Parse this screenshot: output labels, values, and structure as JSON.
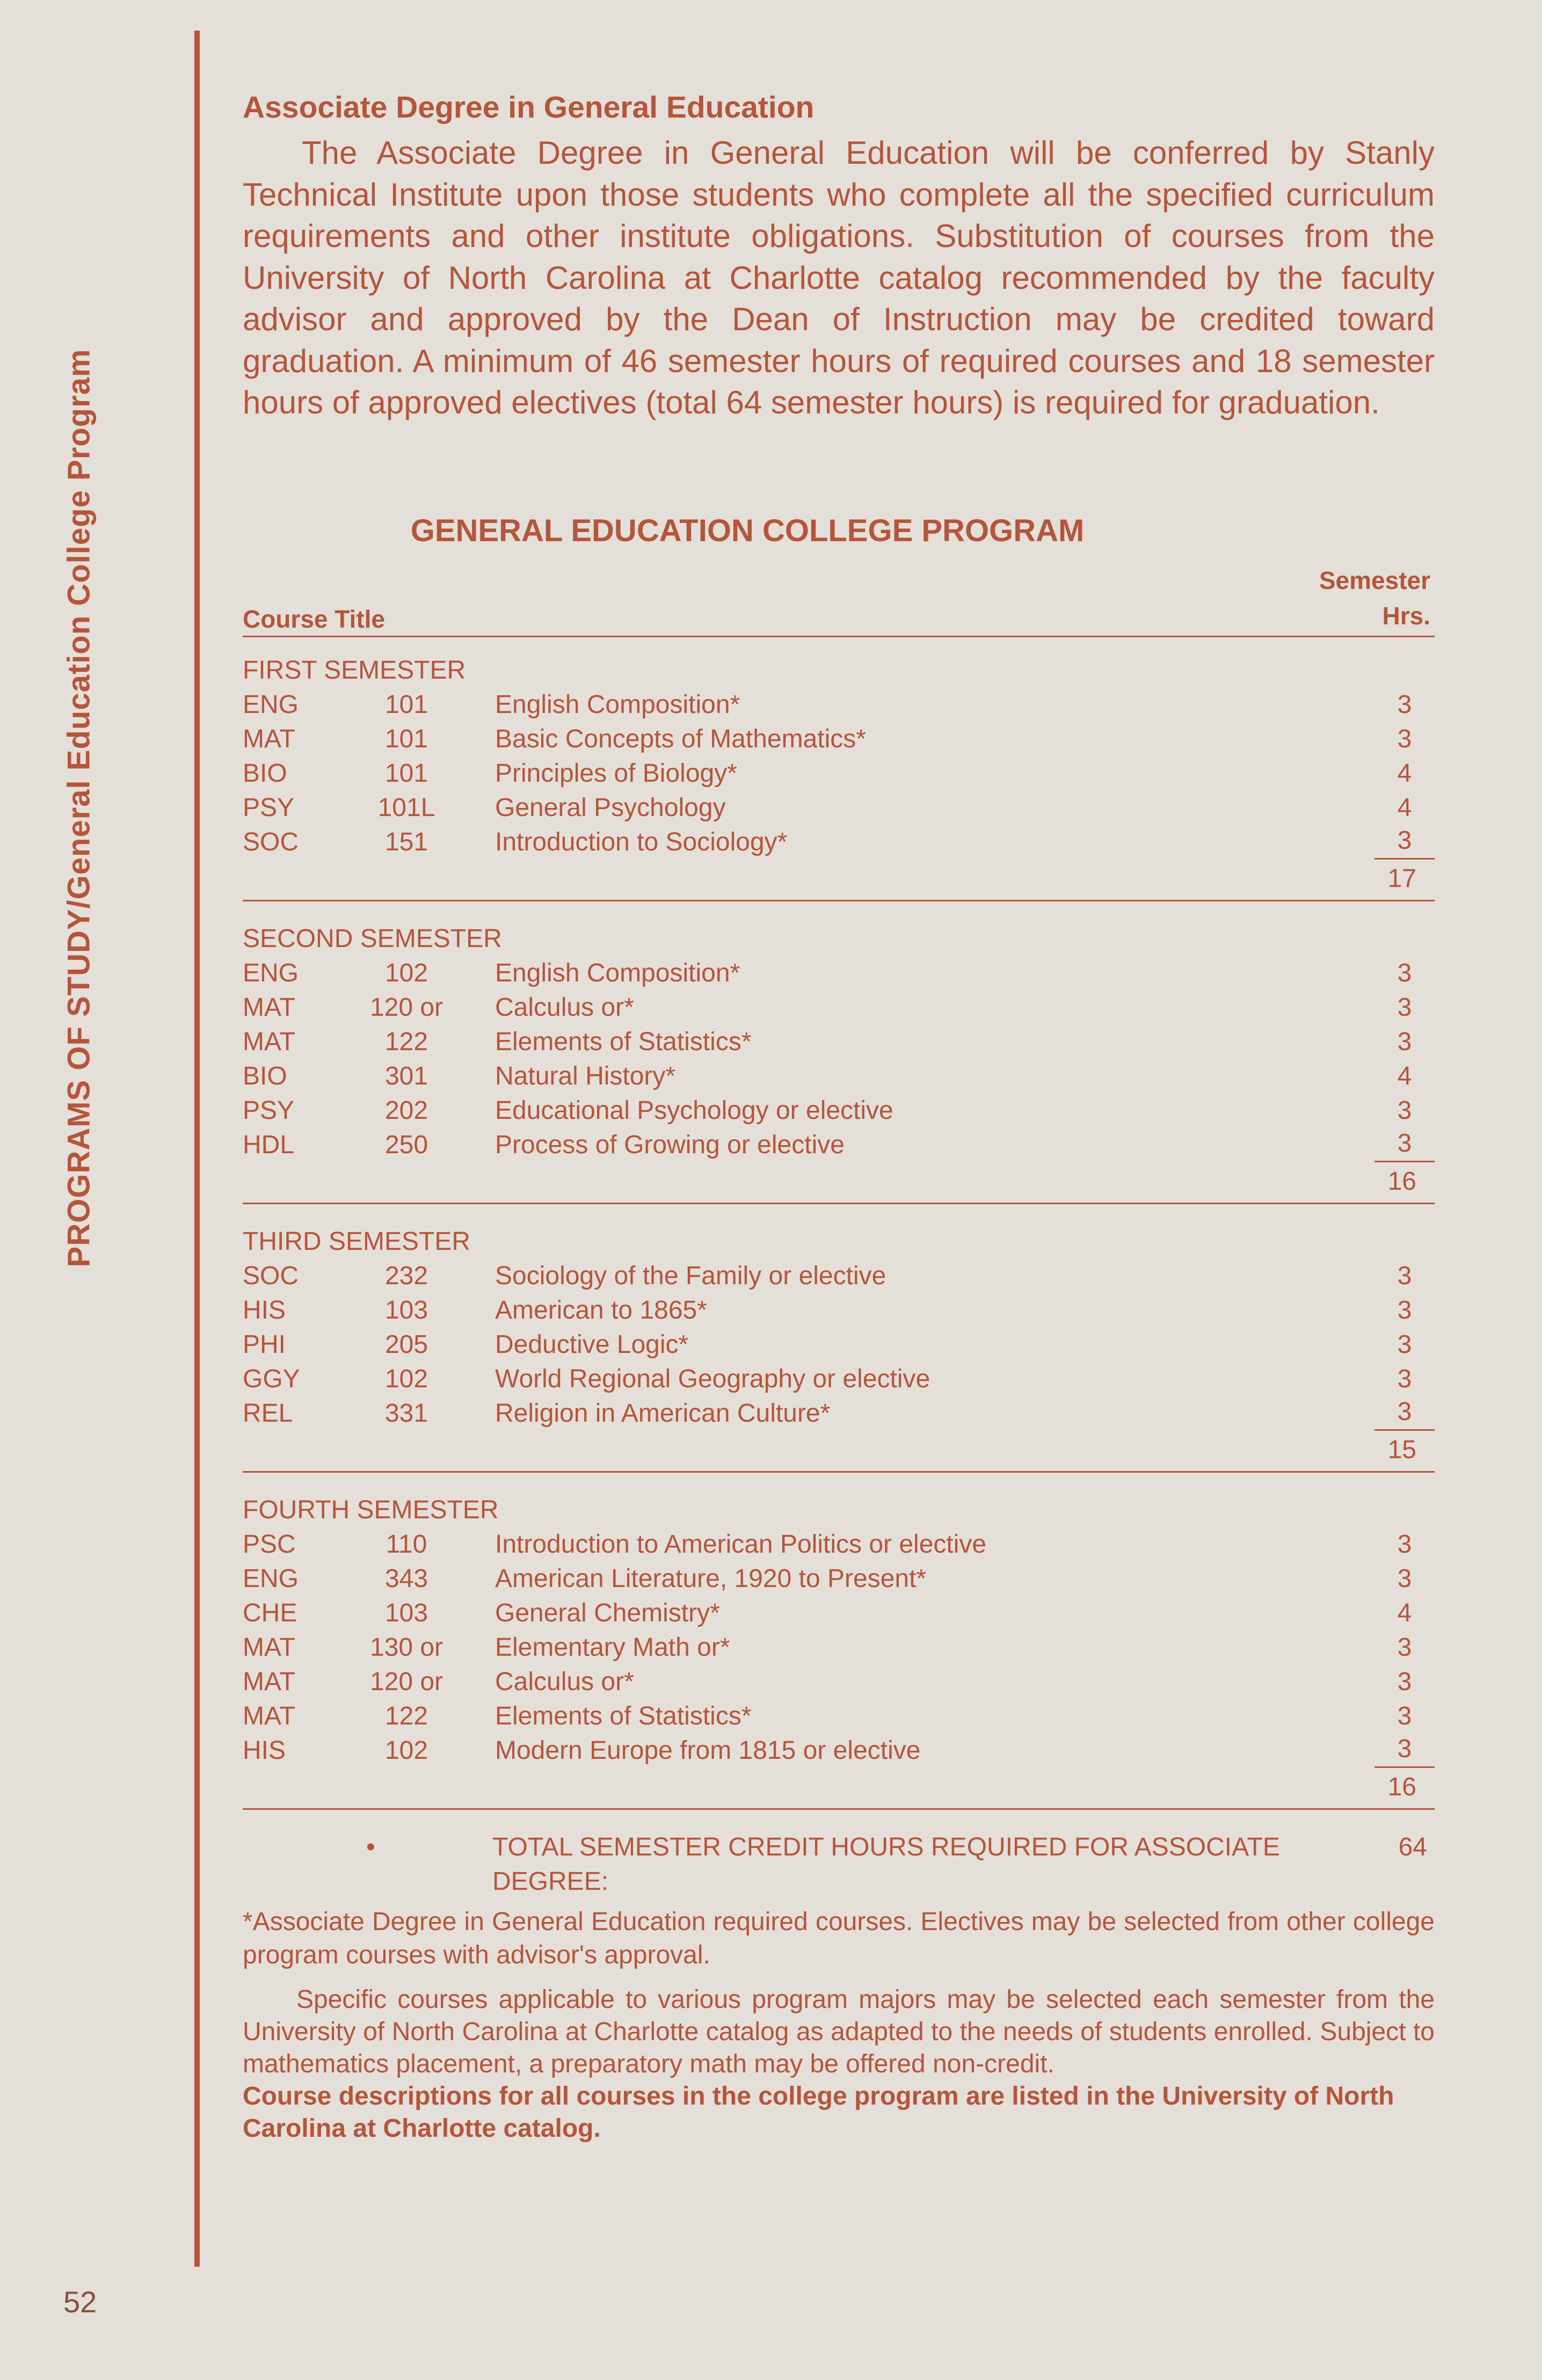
{
  "side_title": "PROGRAMS OF STUDY/General Education College Program",
  "page_number": "52",
  "section_heading": "Associate Degree in General Education",
  "intro": "The Associate Degree in General Education will be conferred by Stanly Technical Institute upon those students who complete all the specified curriculum requirements and other institute obligations. Substitution of courses from the University of North Carolina at Charlotte catalog recommended by the faculty advisor and approved by the Dean of Instruction may be credited toward graduation. A minimum of 46 semester hours of required courses and 18 semester hours of approved electives (total 64 semester hours) is required for graduation.",
  "program_title": "GENERAL EDUCATION COLLEGE PROGRAM",
  "table_header": {
    "course_title": "Course Title",
    "hours_line1": "Semester",
    "hours_line2": "Hrs."
  },
  "semesters": [
    {
      "label": "FIRST SEMESTER",
      "total": "17",
      "courses": [
        {
          "dept": "ENG",
          "num": "101",
          "title": "English Composition*",
          "hrs": "3"
        },
        {
          "dept": "MAT",
          "num": "101",
          "title": "Basic Concepts of Mathematics*",
          "hrs": "3"
        },
        {
          "dept": "BIO",
          "num": "101",
          "title": "Principles of Biology*",
          "hrs": "4"
        },
        {
          "dept": "PSY",
          "num": "101L",
          "title": "General Psychology",
          "hrs": "4"
        },
        {
          "dept": "SOC",
          "num": "151",
          "title": "Introduction to Sociology*",
          "hrs": "3"
        }
      ]
    },
    {
      "label": "SECOND SEMESTER",
      "total": "16",
      "courses": [
        {
          "dept": "ENG",
          "num": "102",
          "title": "English Composition*",
          "hrs": "3"
        },
        {
          "dept": "MAT",
          "num": "120 or",
          "title": "Calculus or*",
          "hrs": "3"
        },
        {
          "dept": "MAT",
          "num": "122",
          "title": "Elements of Statistics*",
          "hrs": "3"
        },
        {
          "dept": "BIO",
          "num": "301",
          "title": "Natural History*",
          "hrs": "4"
        },
        {
          "dept": "PSY",
          "num": "202",
          "title": "Educational Psychology or elective",
          "hrs": "3"
        },
        {
          "dept": "HDL",
          "num": "250",
          "title": "Process of Growing or elective",
          "hrs": "3"
        }
      ]
    },
    {
      "label": "THIRD SEMESTER",
      "total": "15",
      "courses": [
        {
          "dept": "SOC",
          "num": "232",
          "title": "Sociology of the Family or elective",
          "hrs": "3"
        },
        {
          "dept": "HIS",
          "num": "103",
          "title": "American to 1865*",
          "hrs": "3"
        },
        {
          "dept": "PHI",
          "num": "205",
          "title": "Deductive Logic*",
          "hrs": "3"
        },
        {
          "dept": "GGY",
          "num": "102",
          "title": "World Regional Geography or elective",
          "hrs": "3"
        },
        {
          "dept": "REL",
          "num": "331",
          "title": "Religion in American Culture*",
          "hrs": "3"
        }
      ]
    },
    {
      "label": "FOURTH SEMESTER",
      "total": "16",
      "courses": [
        {
          "dept": "PSC",
          "num": "110",
          "title": "Introduction to American Politics or elective",
          "hrs": "3"
        },
        {
          "dept": "ENG",
          "num": "343",
          "title": "American Literature, 1920 to Present*",
          "hrs": "3"
        },
        {
          "dept": "CHE",
          "num": "103",
          "title": "General Chemistry*",
          "hrs": "4"
        },
        {
          "dept": "MAT",
          "num": "130 or",
          "title": "Elementary Math or*",
          "hrs": "3"
        },
        {
          "dept": "MAT",
          "num": "120 or",
          "title": "Calculus or*",
          "hrs": "3"
        },
        {
          "dept": "MAT",
          "num": "122",
          "title": "Elements of Statistics*",
          "hrs": "3"
        },
        {
          "dept": "HIS",
          "num": "102",
          "title": "Modern Europe from 1815 or elective",
          "hrs": "3"
        }
      ]
    }
  ],
  "grand_total": {
    "mark": "•",
    "label": "TOTAL SEMESTER CREDIT HOURS REQUIRED FOR ASSOCIATE DEGREE:",
    "value": "64"
  },
  "footnote": "*Associate Degree in General Education required courses. Electives may be selected from other college program courses with advisor's approval.",
  "specific_note": "Specific courses applicable to various program majors may be selected each semester from the University of North Carolina at Charlotte catalog as adapted to the needs of students enrolled. Subject to mathematics placement, a preparatory math may be offered non-credit.",
  "bold_note": "Course descriptions for all courses in the college program are listed in the University of North Carolina at Charlotte catalog.",
  "colors": {
    "ink": "#b5553a",
    "paper": "#e5dfd9"
  }
}
